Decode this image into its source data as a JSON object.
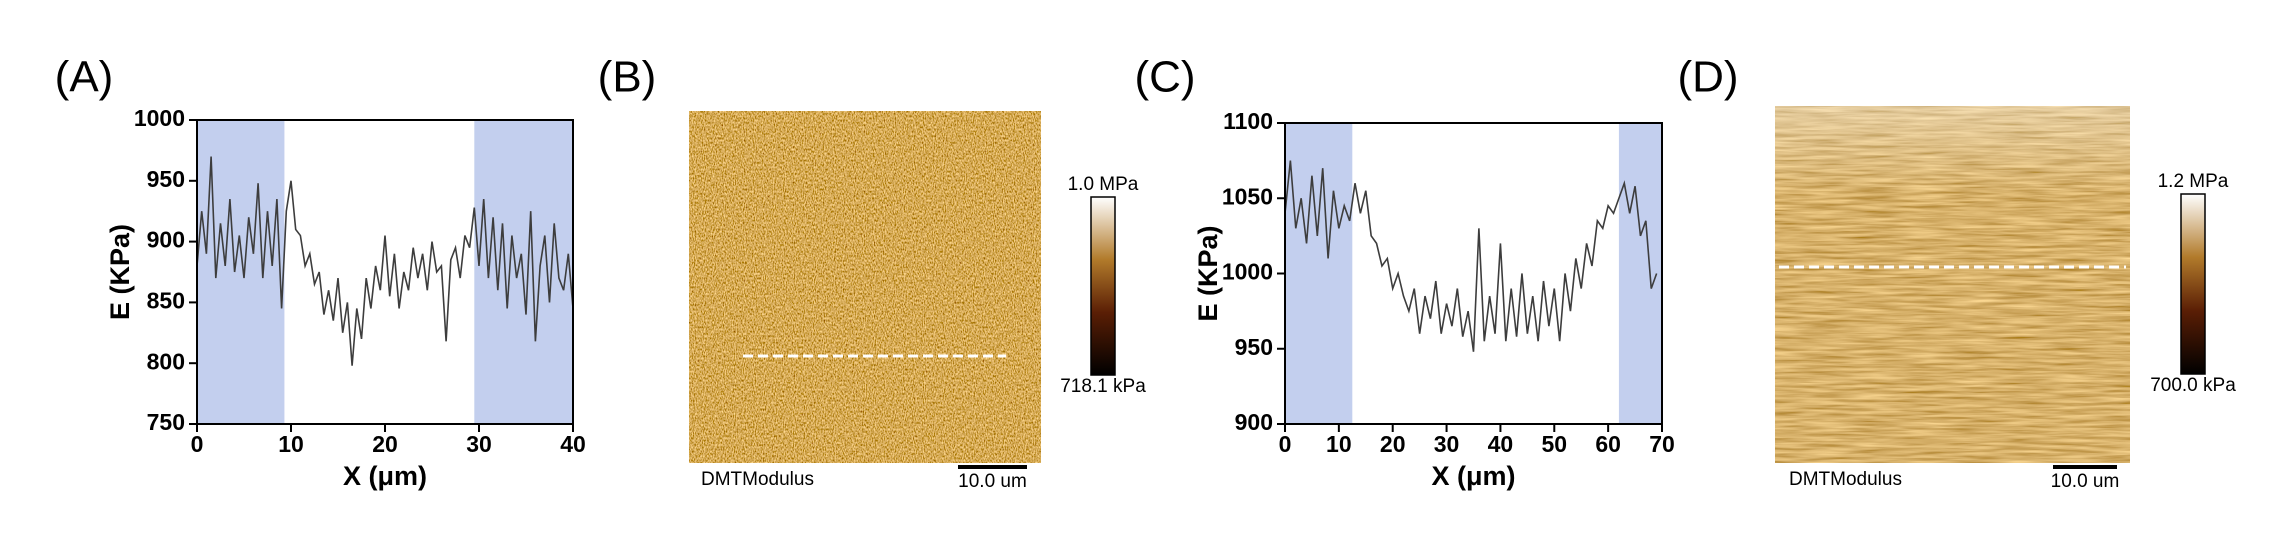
{
  "chart_data": [
    {
      "type": "line",
      "label": "(A)",
      "x_label": "X (μm)",
      "y_label": "E (KPa)",
      "xlim": [
        0,
        40
      ],
      "ylim": [
        750,
        1000
      ],
      "xticks": [
        0,
        10,
        20,
        30,
        40
      ],
      "yticks": [
        750,
        800,
        850,
        900,
        950,
        1000
      ],
      "shaded": [
        [
          0,
          9.3
        ],
        [
          29.5,
          40
        ]
      ],
      "shade_color": "#c3cfee",
      "color": "#3d3d3d",
      "x": [
        0,
        0.5,
        1,
        1.5,
        2,
        2.5,
        3,
        3.5,
        4,
        4.5,
        5,
        5.5,
        6,
        6.5,
        7,
        7.5,
        8,
        8.5,
        9,
        9.5,
        10,
        10.5,
        11,
        11.5,
        12,
        12.5,
        13,
        13.5,
        14,
        14.5,
        15,
        15.5,
        16,
        16.5,
        17,
        17.5,
        18,
        18.5,
        19,
        19.5,
        20,
        20.5,
        21,
        21.5,
        22,
        22.5,
        23,
        23.5,
        24,
        24.5,
        25,
        25.5,
        26,
        26.5,
        27,
        27.5,
        28,
        28.5,
        29,
        29.5,
        30,
        30.5,
        31,
        31.5,
        32,
        32.5,
        33,
        33.5,
        34,
        34.5,
        35,
        35.5,
        36,
        36.5,
        37,
        37.5,
        38,
        38.5,
        39,
        39.5,
        40
      ],
      "values": [
        880,
        925,
        890,
        970,
        870,
        915,
        880,
        935,
        875,
        905,
        870,
        920,
        890,
        948,
        870,
        925,
        880,
        935,
        845,
        925,
        950,
        910,
        905,
        880,
        890,
        865,
        875,
        840,
        860,
        835,
        870,
        825,
        850,
        798,
        845,
        820,
        870,
        845,
        880,
        860,
        905,
        855,
        890,
        845,
        875,
        860,
        895,
        870,
        890,
        860,
        900,
        875,
        880,
        818,
        885,
        895,
        870,
        905,
        895,
        928,
        880,
        935,
        870,
        920,
        860,
        915,
        845,
        905,
        870,
        890,
        840,
        925,
        818,
        880,
        905,
        850,
        915,
        870,
        860,
        890,
        845
      ]
    },
    {
      "type": "image",
      "label": "(B)",
      "channel": "DMTModulus",
      "scale_bar": "10.0 um",
      "colorbar": {
        "max_label": "1.0 MPa",
        "min_label": "718.1 kPa"
      }
    },
    {
      "type": "line",
      "label": "(C)",
      "x_label": "X (μm)",
      "y_label": "E (KPa)",
      "xlim": [
        0,
        70
      ],
      "ylim": [
        900,
        1100
      ],
      "xticks": [
        0,
        10,
        20,
        30,
        40,
        50,
        60,
        70
      ],
      "yticks": [
        900,
        950,
        1000,
        1050,
        1100
      ],
      "shaded": [
        [
          0,
          12.5
        ],
        [
          62,
          70
        ]
      ],
      "shade_color": "#c3cfee",
      "color": "#3d3d3d",
      "x": [
        0,
        1,
        2,
        3,
        4,
        5,
        6,
        7,
        8,
        9,
        10,
        11,
        12,
        13,
        14,
        15,
        16,
        17,
        18,
        19,
        20,
        21,
        22,
        23,
        24,
        25,
        26,
        27,
        28,
        29,
        30,
        31,
        32,
        33,
        34,
        35,
        36,
        37,
        38,
        39,
        40,
        41,
        42,
        43,
        44,
        45,
        46,
        47,
        48,
        49,
        50,
        51,
        52,
        53,
        54,
        55,
        56,
        57,
        58,
        59,
        60,
        61,
        62,
        63,
        64,
        65,
        66,
        67,
        68,
        69
      ],
      "values": [
        1040,
        1075,
        1030,
        1050,
        1020,
        1065,
        1025,
        1070,
        1010,
        1055,
        1030,
        1045,
        1035,
        1060,
        1040,
        1055,
        1025,
        1020,
        1005,
        1010,
        990,
        1000,
        985,
        975,
        990,
        960,
        985,
        970,
        995,
        960,
        980,
        965,
        990,
        958,
        975,
        948,
        1030,
        955,
        985,
        960,
        1020,
        955,
        990,
        958,
        1000,
        960,
        985,
        955,
        995,
        965,
        990,
        955,
        1000,
        975,
        1010,
        990,
        1020,
        1005,
        1035,
        1030,
        1045,
        1040,
        1050,
        1060,
        1040,
        1058,
        1025,
        1035,
        990,
        1000
      ]
    },
    {
      "type": "image",
      "label": "(D)",
      "channel": "DMTModulus",
      "scale_bar": "10.0 um",
      "colorbar": {
        "max_label": "1.2 MPa",
        "min_label": "700.0 kPa"
      }
    }
  ]
}
